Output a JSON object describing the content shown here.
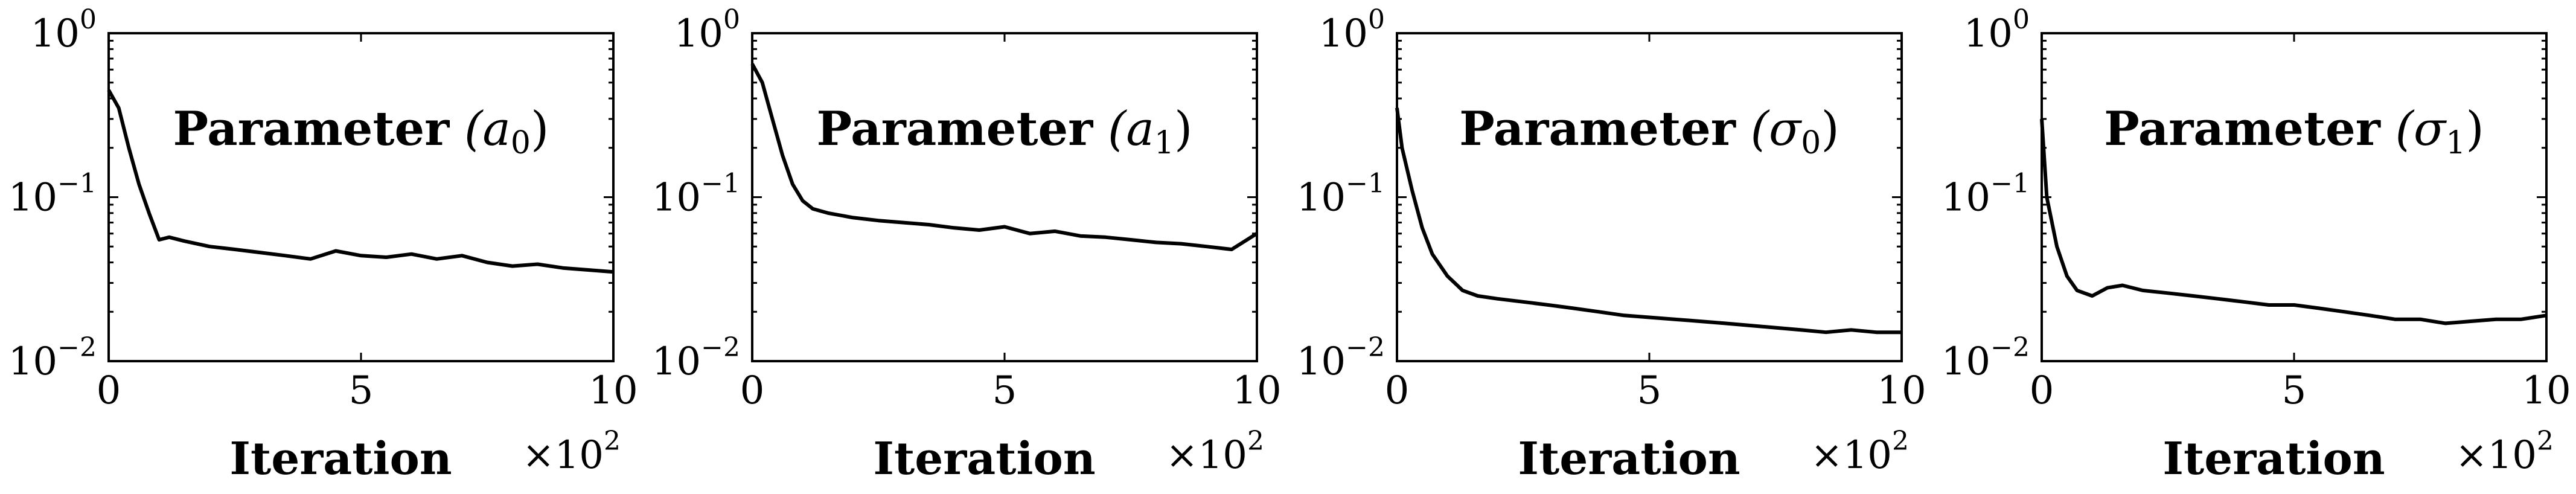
{
  "chart_data": [
    {
      "type": "line",
      "title": "Parameter",
      "title_param": "(a",
      "title_sub": "0",
      "title_close": ")",
      "xlabel": "Iteration",
      "x_multiplier": "×10",
      "x_multiplier_exp": "2",
      "xlim": [
        0,
        10
      ],
      "ylim": [
        0.01,
        1
      ],
      "yscale": "log",
      "xticks": [
        {
          "value": 0,
          "label": "0"
        },
        {
          "value": 5,
          "label": "5"
        },
        {
          "value": 10,
          "label": "10"
        }
      ],
      "yticks": [
        {
          "value": 1,
          "base": "10",
          "exp": "0"
        },
        {
          "value": 0.1,
          "base": "10",
          "exp": "−1"
        },
        {
          "value": 0.01,
          "base": "10",
          "exp": "−2"
        }
      ],
      "grid": false,
      "series": [
        {
          "x": [
            0,
            0.2,
            0.4,
            0.6,
            0.8,
            1.0,
            1.2,
            1.5,
            2.0,
            2.5,
            3.0,
            3.5,
            4.0,
            4.5,
            5.0,
            5.5,
            6.0,
            6.5,
            7.0,
            7.5,
            8.0,
            8.5,
            9.0,
            9.5,
            10.0
          ],
          "y": [
            0.45,
            0.35,
            0.2,
            0.12,
            0.08,
            0.055,
            0.057,
            0.054,
            0.05,
            0.048,
            0.046,
            0.044,
            0.042,
            0.047,
            0.044,
            0.043,
            0.045,
            0.042,
            0.044,
            0.04,
            0.038,
            0.039,
            0.037,
            0.036,
            0.035
          ]
        }
      ]
    },
    {
      "type": "line",
      "title": "Parameter",
      "title_param": "(a",
      "title_sub": "1",
      "title_close": ")",
      "xlabel": "Iteration",
      "x_multiplier": "×10",
      "x_multiplier_exp": "2",
      "xlim": [
        0,
        10
      ],
      "ylim": [
        0.01,
        1
      ],
      "yscale": "log",
      "xticks": [
        {
          "value": 0,
          "label": "0"
        },
        {
          "value": 5,
          "label": "5"
        },
        {
          "value": 10,
          "label": "10"
        }
      ],
      "yticks": [
        {
          "value": 1,
          "base": "10",
          "exp": "0"
        },
        {
          "value": 0.1,
          "base": "10",
          "exp": "−1"
        },
        {
          "value": 0.01,
          "base": "10",
          "exp": "−2"
        }
      ],
      "grid": false,
      "series": [
        {
          "x": [
            0,
            0.2,
            0.4,
            0.6,
            0.8,
            1.0,
            1.2,
            1.5,
            2.0,
            2.5,
            3.0,
            3.5,
            4.0,
            4.5,
            5.0,
            5.5,
            6.0,
            6.5,
            7.0,
            7.5,
            8.0,
            8.5,
            9.0,
            9.5,
            10.0
          ],
          "y": [
            0.65,
            0.5,
            0.3,
            0.18,
            0.12,
            0.095,
            0.085,
            0.08,
            0.075,
            0.072,
            0.07,
            0.068,
            0.065,
            0.063,
            0.066,
            0.06,
            0.062,
            0.058,
            0.057,
            0.055,
            0.053,
            0.052,
            0.05,
            0.048,
            0.06
          ]
        }
      ]
    },
    {
      "type": "line",
      "title": "Parameter",
      "title_param": "(σ",
      "title_sub": "0",
      "title_close": ")",
      "xlabel": "Iteration",
      "x_multiplier": "×10",
      "x_multiplier_exp": "2",
      "xlim": [
        0,
        10
      ],
      "ylim": [
        0.01,
        1
      ],
      "yscale": "log",
      "xticks": [
        {
          "value": 0,
          "label": "0"
        },
        {
          "value": 5,
          "label": "5"
        },
        {
          "value": 10,
          "label": "10"
        }
      ],
      "yticks": [
        {
          "value": 1,
          "base": "10",
          "exp": "0"
        },
        {
          "value": 0.1,
          "base": "10",
          "exp": "−1"
        },
        {
          "value": 0.01,
          "base": "10",
          "exp": "−2"
        }
      ],
      "grid": false,
      "series": [
        {
          "x": [
            0,
            0.1,
            0.3,
            0.5,
            0.7,
            1.0,
            1.3,
            1.6,
            2.0,
            2.5,
            3.0,
            3.5,
            4.0,
            4.5,
            5.0,
            5.5,
            6.0,
            6.5,
            7.0,
            7.5,
            8.0,
            8.5,
            9.0,
            9.5,
            10.0
          ],
          "y": [
            0.35,
            0.2,
            0.11,
            0.065,
            0.045,
            0.033,
            0.027,
            0.025,
            0.024,
            0.023,
            0.022,
            0.021,
            0.02,
            0.019,
            0.0185,
            0.018,
            0.0175,
            0.017,
            0.0165,
            0.016,
            0.0155,
            0.015,
            0.0155,
            0.015,
            0.015
          ]
        }
      ]
    },
    {
      "type": "line",
      "title": "Parameter",
      "title_param": "(σ",
      "title_sub": "1",
      "title_close": ")",
      "xlabel": "Iteration",
      "x_multiplier": "×10",
      "x_multiplier_exp": "2",
      "xlim": [
        0,
        10
      ],
      "ylim": [
        0.01,
        1
      ],
      "yscale": "log",
      "xticks": [
        {
          "value": 0,
          "label": "0"
        },
        {
          "value": 5,
          "label": "5"
        },
        {
          "value": 10,
          "label": "10"
        }
      ],
      "yticks": [
        {
          "value": 1,
          "base": "10",
          "exp": "0"
        },
        {
          "value": 0.1,
          "base": "10",
          "exp": "−1"
        },
        {
          "value": 0.01,
          "base": "10",
          "exp": "−2"
        }
      ],
      "grid": false,
      "series": [
        {
          "x": [
            0,
            0.1,
            0.3,
            0.5,
            0.7,
            1.0,
            1.3,
            1.6,
            2.0,
            2.5,
            3.0,
            3.5,
            4.0,
            4.5,
            5.0,
            5.5,
            6.0,
            6.5,
            7.0,
            7.5,
            8.0,
            8.5,
            9.0,
            9.5,
            10.0
          ],
          "y": [
            0.3,
            0.1,
            0.05,
            0.033,
            0.027,
            0.025,
            0.028,
            0.029,
            0.027,
            0.026,
            0.025,
            0.024,
            0.023,
            0.022,
            0.022,
            0.021,
            0.02,
            0.019,
            0.018,
            0.018,
            0.017,
            0.0175,
            0.018,
            0.018,
            0.019
          ]
        }
      ]
    }
  ]
}
